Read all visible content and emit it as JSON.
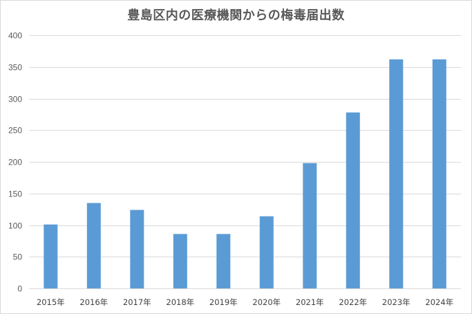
{
  "chart_data": {
    "type": "bar",
    "title": "豊島区内の医療機関からの梅毒届出数",
    "xlabel": "",
    "ylabel": "",
    "categories": [
      "2015年",
      "2016年",
      "2017年",
      "2018年",
      "2019年",
      "2020年",
      "2021年",
      "2022年",
      "2023年",
      "2024年"
    ],
    "values": [
      101,
      135,
      124,
      86,
      86,
      114,
      198,
      278,
      362,
      362
    ],
    "ylim": [
      0,
      400
    ],
    "yticks": [
      0,
      50,
      100,
      150,
      200,
      250,
      300,
      350,
      400
    ],
    "grid": true,
    "legend": "none",
    "bar_color": "#5b9bd5",
    "grid_color": "#d9d9d9"
  }
}
